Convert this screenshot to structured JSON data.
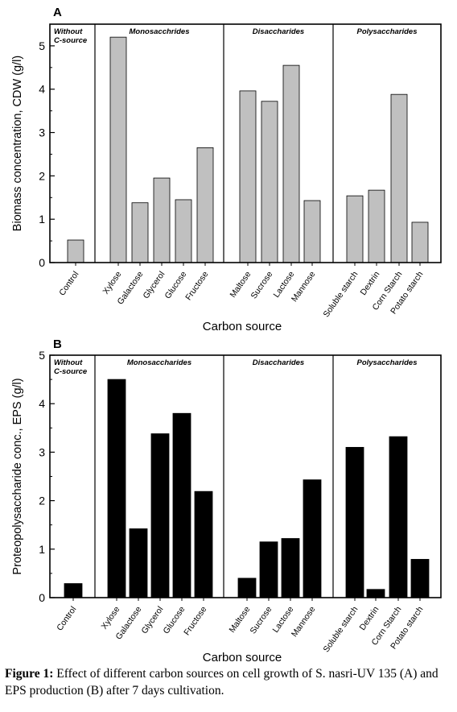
{
  "charts": [
    {
      "type": "bar",
      "panel_label": "A",
      "ylabel": "Biomass concentration, CDW (g/l)",
      "xlabel": "Carbon source",
      "ylim": [
        0,
        5.5
      ],
      "yticks": [
        "0",
        "1",
        "2",
        "3",
        "4",
        "5"
      ],
      "bar_color": "#c0c0c0",
      "groups": [
        {
          "label": "Without C-source",
          "label_lines": [
            "Without",
            "C-source"
          ],
          "categories": [
            "Control"
          ],
          "values": [
            0.52
          ]
        },
        {
          "label": "Monosacchrides",
          "label_lines": [
            "Monosacchrides"
          ],
          "categories": [
            "Xylose",
            "Galactose",
            "Glycerol",
            "Glucose",
            "Fructose"
          ],
          "values": [
            5.2,
            1.38,
            1.95,
            1.45,
            2.65
          ]
        },
        {
          "label": "Disaccharides",
          "label_lines": [
            "Disaccharides"
          ],
          "categories": [
            "Maltose",
            "Sucrose",
            "Lactose",
            "Mannose"
          ],
          "values": [
            3.96,
            3.72,
            4.55,
            1.43
          ]
        },
        {
          "label": "Polysaccharides",
          "label_lines": [
            "Polysaccharides"
          ],
          "categories": [
            "Soluble starch",
            "Dextrin",
            "Corn Starch",
            "Potato starch"
          ],
          "values": [
            1.54,
            1.67,
            3.88,
            0.93
          ]
        }
      ]
    },
    {
      "type": "bar",
      "panel_label": "B",
      "ylabel": "Proteopolysaccharide conc., EPS (g/l)",
      "xlabel": "Carbon source",
      "ylim": [
        0,
        5
      ],
      "yticks": [
        "0",
        "1",
        "2",
        "3",
        "4",
        "5"
      ],
      "bar_color": "#000000",
      "groups": [
        {
          "label": "Without C-source",
          "label_lines": [
            "Without",
            "C-source"
          ],
          "categories": [
            "Control"
          ],
          "values": [
            0.29
          ]
        },
        {
          "label": "Monosaccharides",
          "label_lines": [
            "Monosaccharides"
          ],
          "categories": [
            "Xylose",
            "Galactose",
            "Glycerol",
            "Glucose",
            "Fructose"
          ],
          "values": [
            4.5,
            1.42,
            3.38,
            3.8,
            2.19
          ]
        },
        {
          "label": "Disaccharides",
          "label_lines": [
            "Disaccharides"
          ],
          "categories": [
            "Maltose",
            "Sucrose",
            "Lactose",
            "Mannose"
          ],
          "values": [
            0.4,
            1.15,
            1.22,
            2.43
          ]
        },
        {
          "label": "Polysaccharides",
          "label_lines": [
            "Polysaccharides"
          ],
          "categories": [
            "Soluble starch",
            "Dextrin",
            "Corn Starch",
            "Potato starch"
          ],
          "values": [
            3.1,
            0.17,
            3.32,
            0.79
          ]
        }
      ]
    }
  ],
  "caption": {
    "prefix": "Figure 1:",
    "text": " Effect of different carbon sources on cell growth of S. nasri-UV 135 (A) and EPS production (B) after 7 days cultivation."
  }
}
